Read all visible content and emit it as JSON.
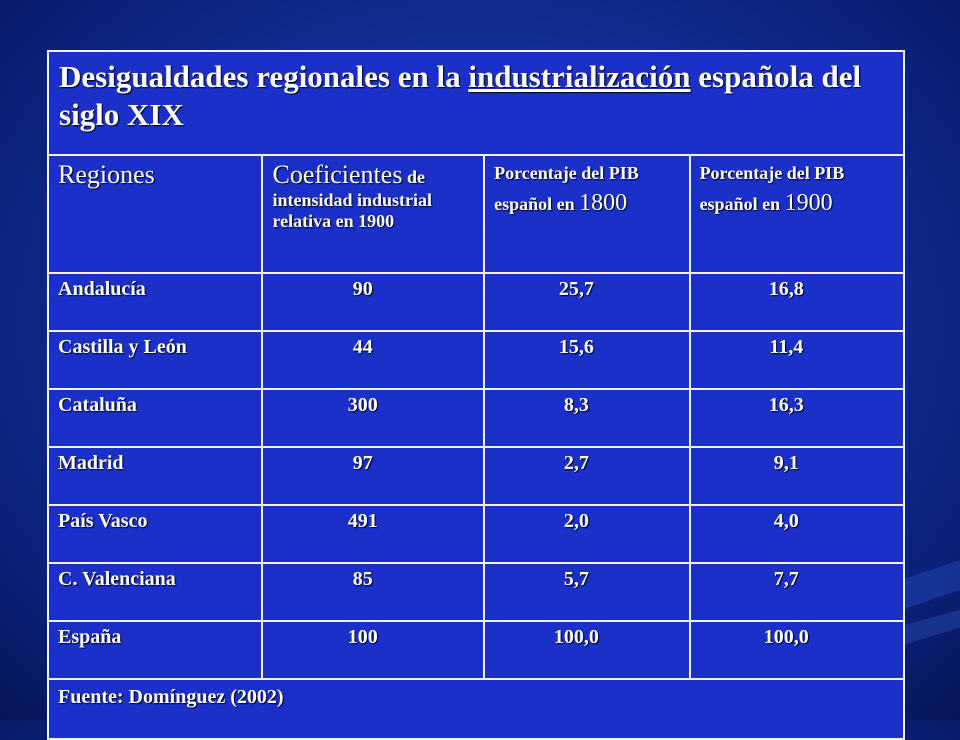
{
  "slide": {
    "title_part1": "Desigualdades regionales en la ",
    "title_underlined": "industrialización",
    "title_part2": " española del siglo XIX",
    "headers": {
      "regiones": "Regiones",
      "coef_big": "Coeficientes",
      "coef_small": " de intensidad industrial relativa en 1900",
      "pib1800_text": "Porcentaje del PIB español en ",
      "pib1800_year": "1800",
      "pib1900_text": "Porcentaje del PIB español en ",
      "pib1900_year": "1900"
    },
    "rows": [
      {
        "region": "Andalucía",
        "coef": "90",
        "pib1800": "25,7",
        "pib1900": "16,8"
      },
      {
        "region": "Castilla y León",
        "coef": "44",
        "pib1800": "15,6",
        "pib1900": "11,4"
      },
      {
        "region": "Cataluña",
        "coef": "300",
        "pib1800": "8,3",
        "pib1900": "16,3"
      },
      {
        "region": "Madrid",
        "coef": "97",
        "pib1800": "2,7",
        "pib1900": "9,1"
      },
      {
        "region": "País Vasco",
        "coef": "491",
        "pib1800": "2,0",
        "pib1900": "4,0"
      },
      {
        "region": "C. Valenciana",
        "coef": "85",
        "pib1800": "5,7",
        "pib1900": "7,7"
      },
      {
        "region": "España",
        "coef": "100",
        "pib1800": "100,0",
        "pib1900": "100,0"
      }
    ],
    "source": "Fuente: Domínguez (2002)"
  },
  "colors": {
    "background": "#12309a",
    "table_fill": "#1a30c8",
    "border": "#f2f2f2",
    "text": "#ffffff"
  }
}
